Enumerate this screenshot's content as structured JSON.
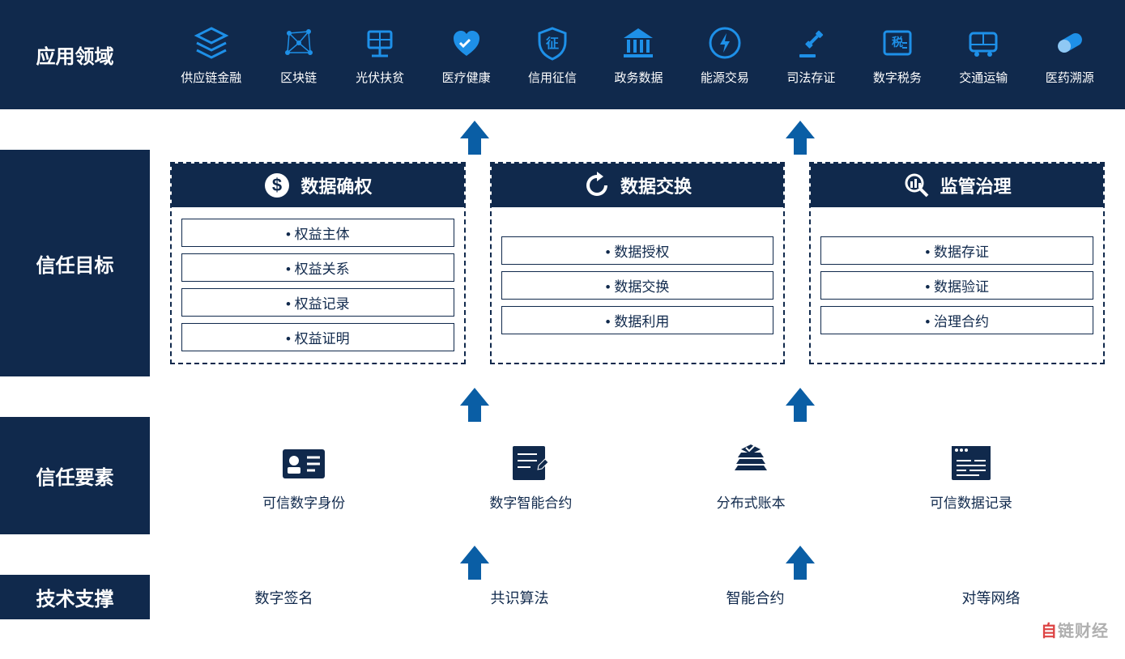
{
  "colors": {
    "dark_bg": "#10294c",
    "icon_blue": "#1e90e8",
    "arrow_blue": "#0a5ea5",
    "white": "#ffffff"
  },
  "rows": {
    "apps": {
      "label": "应用领域",
      "items": [
        {
          "name": "supply-chain",
          "label": "供应链金融"
        },
        {
          "name": "blockchain",
          "label": "区块链"
        },
        {
          "name": "pv-poverty",
          "label": "光伏扶贫"
        },
        {
          "name": "healthcare",
          "label": "医疗健康"
        },
        {
          "name": "credit",
          "label": "信用征信"
        },
        {
          "name": "gov-affairs",
          "label": "政务数据"
        },
        {
          "name": "energy",
          "label": "能源交易"
        },
        {
          "name": "judicial",
          "label": "司法存证"
        },
        {
          "name": "tax",
          "label": "数字税务"
        },
        {
          "name": "transport",
          "label": "交通运输"
        },
        {
          "name": "pharma",
          "label": "医药溯源"
        }
      ]
    },
    "goals": {
      "label": "信任目标",
      "cards": [
        {
          "name": "data-rights",
          "title": "数据确权",
          "icon": "dollar",
          "items": [
            "权益主体",
            "权益关系",
            "权益记录",
            "权益证明"
          ]
        },
        {
          "name": "data-exchange",
          "title": "数据交换",
          "icon": "refresh",
          "items": [
            "数据授权",
            "数据交换",
            "数据利用"
          ]
        },
        {
          "name": "governance",
          "title": "监管治理",
          "icon": "analytics",
          "items": [
            "数据存证",
            "数据验证",
            "治理合约"
          ]
        }
      ]
    },
    "elements": {
      "label": "信任要素",
      "items": [
        {
          "name": "identity",
          "label": "可信数字身份"
        },
        {
          "name": "contract",
          "label": "数字智能合约"
        },
        {
          "name": "ledger",
          "label": "分布式账本"
        },
        {
          "name": "record",
          "label": "可信数据记录"
        }
      ]
    },
    "tech": {
      "label": "技术支撑",
      "items": [
        "数字签名",
        "共识算法",
        "智能合约",
        "对等网络"
      ]
    }
  },
  "watermark": {
    "red": "自",
    "rest": "链财经"
  }
}
